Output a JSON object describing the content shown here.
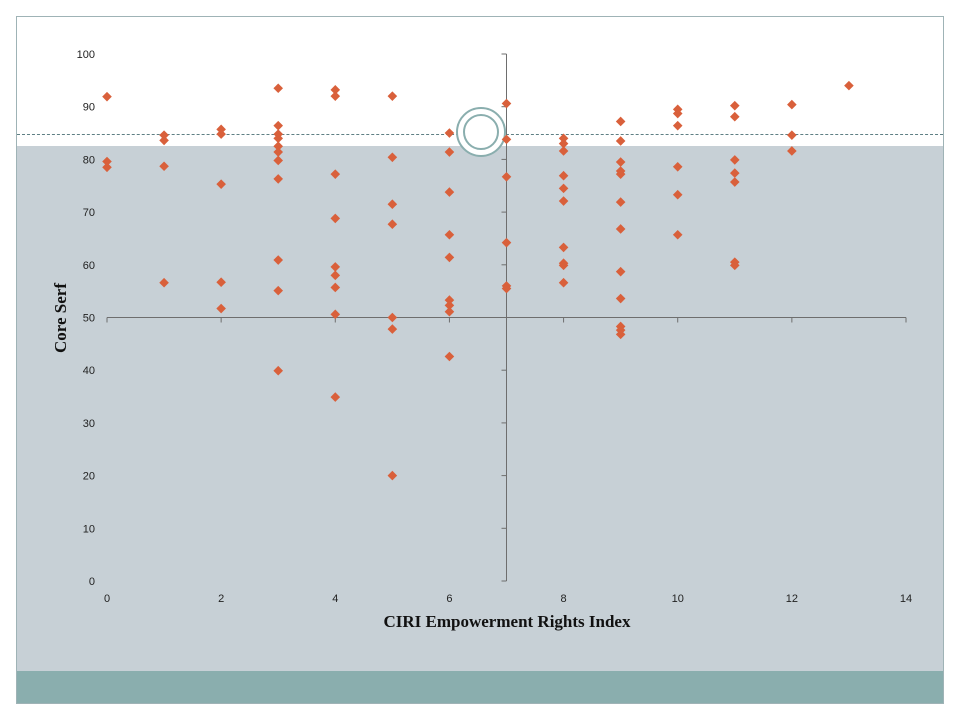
{
  "colors": {
    "marker": "#d9603b",
    "axis": "#6e6e6e",
    "slide_body": "#c7d0d6",
    "footer_band": "#8aaeae"
  },
  "chart_data": {
    "type": "scatter",
    "xlabel": "CIRI Empowerment Rights Index",
    "ylabel": "Core Serf",
    "xlim": [
      0,
      14
    ],
    "ylim": [
      0,
      100
    ],
    "x_ticks": [
      0,
      2,
      4,
      6,
      8,
      10,
      12,
      14
    ],
    "y_ticks": [
      0,
      10,
      20,
      30,
      40,
      50,
      60,
      70,
      80,
      90,
      100
    ],
    "x_tick_labels": [
      "0",
      "2",
      "4",
      "6",
      "8",
      "10",
      "12",
      "14"
    ],
    "y_tick_labels": [
      "0",
      "10",
      "20",
      "30",
      "40",
      "50",
      "60",
      "70",
      "80",
      "90",
      "100"
    ],
    "axes_cross": {
      "x": 7,
      "y": 50
    },
    "marker": "diamond",
    "grid": false,
    "legend": "none",
    "points": [
      [
        0,
        91.9
      ],
      [
        0,
        79.6
      ],
      [
        0,
        78.5
      ],
      [
        1,
        84.6
      ],
      [
        1,
        83.6
      ],
      [
        1,
        78.7
      ],
      [
        1,
        56.6
      ],
      [
        2,
        85.7
      ],
      [
        2,
        84.8
      ],
      [
        2,
        75.3
      ],
      [
        2,
        56.7
      ],
      [
        2,
        51.7
      ],
      [
        3,
        93.5
      ],
      [
        3,
        86.4
      ],
      [
        3,
        84.8
      ],
      [
        3,
        84.0
      ],
      [
        3,
        82.5
      ],
      [
        3,
        81.4
      ],
      [
        3,
        79.8
      ],
      [
        3,
        76.3
      ],
      [
        3,
        60.9
      ],
      [
        3,
        55.1
      ],
      [
        3,
        39.9
      ],
      [
        4,
        93.2
      ],
      [
        4,
        92.0
      ],
      [
        4,
        77.2
      ],
      [
        4,
        68.8
      ],
      [
        4,
        59.6
      ],
      [
        4,
        58.0
      ],
      [
        4,
        55.7
      ],
      [
        4,
        50.6
      ],
      [
        4,
        34.9
      ],
      [
        5,
        92.0
      ],
      [
        5,
        80.4
      ],
      [
        5,
        71.5
      ],
      [
        5,
        67.7
      ],
      [
        5,
        50.0
      ],
      [
        5,
        47.8
      ],
      [
        5,
        20.0
      ],
      [
        6,
        85.0
      ],
      [
        6,
        81.4
      ],
      [
        6,
        73.8
      ],
      [
        6,
        65.7
      ],
      [
        6,
        61.4
      ],
      [
        6,
        53.3
      ],
      [
        6,
        52.3
      ],
      [
        6,
        51.1
      ],
      [
        6,
        42.6
      ],
      [
        7,
        90.6
      ],
      [
        7,
        83.8
      ],
      [
        7,
        76.7
      ],
      [
        7,
        64.2
      ],
      [
        7,
        56.0
      ],
      [
        7,
        55.5
      ],
      [
        8,
        84.0
      ],
      [
        8,
        83.0
      ],
      [
        8,
        81.6
      ],
      [
        8,
        76.9
      ],
      [
        8,
        74.5
      ],
      [
        8,
        72.1
      ],
      [
        8,
        63.3
      ],
      [
        8,
        60.3
      ],
      [
        8,
        59.9
      ],
      [
        8,
        56.6
      ],
      [
        9,
        87.2
      ],
      [
        9,
        83.5
      ],
      [
        9,
        79.5
      ],
      [
        9,
        77.8
      ],
      [
        9,
        77.2
      ],
      [
        9,
        71.9
      ],
      [
        9,
        66.8
      ],
      [
        9,
        58.7
      ],
      [
        9,
        53.6
      ],
      [
        9,
        48.3
      ],
      [
        9,
        47.6
      ],
      [
        9,
        46.8
      ],
      [
        10,
        89.5
      ],
      [
        10,
        88.7
      ],
      [
        10,
        86.4
      ],
      [
        10,
        78.6
      ],
      [
        10,
        73.3
      ],
      [
        10,
        65.7
      ],
      [
        11,
        90.2
      ],
      [
        11,
        88.1
      ],
      [
        11,
        79.9
      ],
      [
        11,
        77.4
      ],
      [
        11,
        75.7
      ],
      [
        11,
        60.5
      ],
      [
        11,
        59.9
      ],
      [
        12,
        90.4
      ],
      [
        12,
        84.6
      ],
      [
        12,
        81.6
      ],
      [
        13,
        94.0
      ]
    ]
  }
}
